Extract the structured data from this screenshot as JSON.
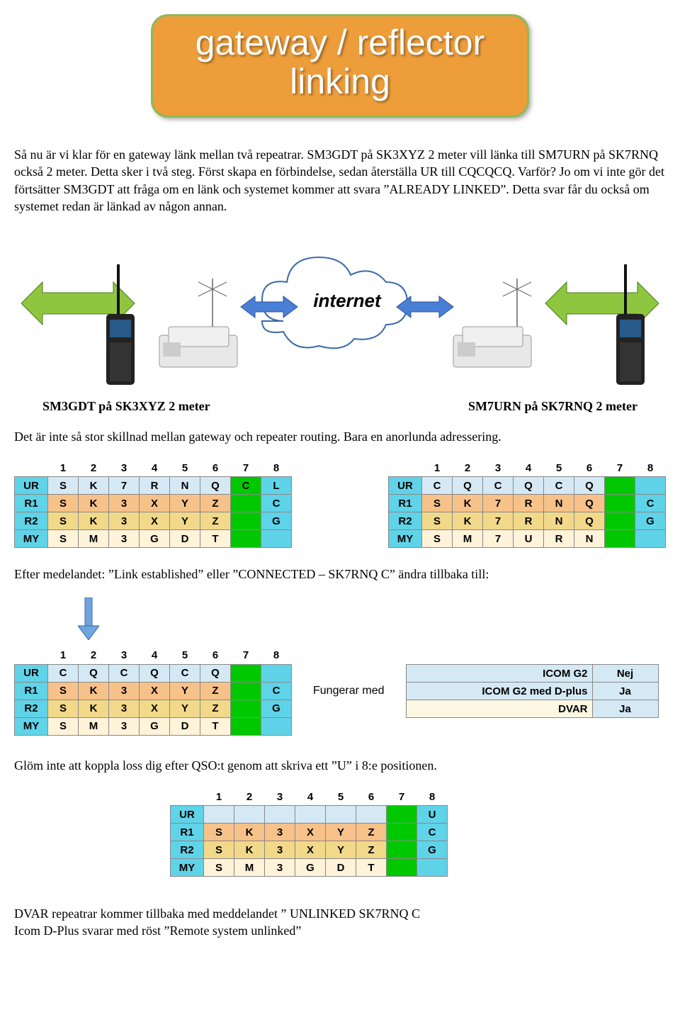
{
  "banner": {
    "line1": "gateway / reflector",
    "line2": "linking"
  },
  "para1": "Så nu är vi klar för en gateway länk mellan två repeatrar. SM3GDT på SK3XYZ 2 meter vill länka till SM7URN på SK7RNQ också 2 meter. Detta sker i två steg. Först skapa en förbindelse, sedan återställa UR till CQCQCQ. Varför? Jo om vi inte gör det förtsätter SM3GDT att fråga om en länk och systemet kommer att svara ”ALREADY LINKED”. Detta svar får du också om systemet redan är länkad av någon annan.",
  "diagram": {
    "label": "internet"
  },
  "caption_left": "SM3GDT på SK3XYZ 2 meter",
  "caption_right": "SM7URN på SK7RNQ 2 meter",
  "para2": "Det är inte så stor skillnad mellan gateway och repeater routing. Bara en anorlunda adressering.",
  "colors": {
    "cyan": "#5fd3e8",
    "lightblue": "#d5e9f5",
    "green": "#00c800",
    "orange": "#f7c28a",
    "amber": "#f2d98a",
    "cream": "#fff3d9",
    "paleyellow": "#fcf8e3",
    "gridborder": "#888888"
  },
  "header_row": [
    "",
    "1",
    "2",
    "3",
    "4",
    "5",
    "6",
    "7",
    "8"
  ],
  "table1": {
    "rows": [
      {
        "label": "UR",
        "cells": [
          "S",
          "K",
          "7",
          "R",
          "N",
          "Q",
          "C",
          "L"
        ],
        "hc": "cyan",
        "cc": [
          "lightblue",
          "lightblue",
          "lightblue",
          "lightblue",
          "lightblue",
          "lightblue",
          "green",
          "cyan"
        ]
      },
      {
        "label": "R1",
        "cells": [
          "S",
          "K",
          "3",
          "X",
          "Y",
          "Z",
          "",
          "C"
        ],
        "hc": "cyan",
        "cc": [
          "orange",
          "orange",
          "orange",
          "orange",
          "orange",
          "orange",
          "green",
          "cyan"
        ]
      },
      {
        "label": "R2",
        "cells": [
          "S",
          "K",
          "3",
          "X",
          "Y",
          "Z",
          "",
          "G"
        ],
        "hc": "cyan",
        "cc": [
          "amber",
          "amber",
          "amber",
          "amber",
          "amber",
          "amber",
          "green",
          "cyan"
        ]
      },
      {
        "label": "MY",
        "cells": [
          "S",
          "M",
          "3",
          "G",
          "D",
          "T",
          "",
          ""
        ],
        "hc": "cyan",
        "cc": [
          "cream",
          "cream",
          "cream",
          "cream",
          "cream",
          "cream",
          "green",
          "cyan"
        ]
      }
    ]
  },
  "table2": {
    "rows": [
      {
        "label": "UR",
        "cells": [
          "C",
          "Q",
          "C",
          "Q",
          "C",
          "Q",
          "",
          ""
        ],
        "hc": "cyan",
        "cc": [
          "lightblue",
          "lightblue",
          "lightblue",
          "lightblue",
          "lightblue",
          "lightblue",
          "green",
          "cyan"
        ]
      },
      {
        "label": "R1",
        "cells": [
          "S",
          "K",
          "7",
          "R",
          "N",
          "Q",
          "",
          "C"
        ],
        "hc": "cyan",
        "cc": [
          "orange",
          "orange",
          "orange",
          "orange",
          "orange",
          "orange",
          "green",
          "cyan"
        ]
      },
      {
        "label": "R2",
        "cells": [
          "S",
          "K",
          "7",
          "R",
          "N",
          "Q",
          "",
          "G"
        ],
        "hc": "cyan",
        "cc": [
          "amber",
          "amber",
          "amber",
          "amber",
          "amber",
          "amber",
          "green",
          "cyan"
        ]
      },
      {
        "label": "MY",
        "cells": [
          "S",
          "M",
          "7",
          "U",
          "R",
          "N",
          "",
          ""
        ],
        "hc": "cyan",
        "cc": [
          "cream",
          "cream",
          "cream",
          "cream",
          "cream",
          "cream",
          "green",
          "cyan"
        ]
      }
    ]
  },
  "para3": "Efter medelandet: ”Link established” eller ”CONNECTED – SK7RNQ C” ändra tillbaka till:",
  "table3": {
    "rows": [
      {
        "label": "UR",
        "cells": [
          "C",
          "Q",
          "C",
          "Q",
          "C",
          "Q",
          "",
          ""
        ],
        "hc": "cyan",
        "cc": [
          "lightblue",
          "lightblue",
          "lightblue",
          "lightblue",
          "lightblue",
          "lightblue",
          "green",
          "cyan"
        ]
      },
      {
        "label": "R1",
        "cells": [
          "S",
          "K",
          "3",
          "X",
          "Y",
          "Z",
          "",
          "C"
        ],
        "hc": "cyan",
        "cc": [
          "orange",
          "orange",
          "orange",
          "orange",
          "orange",
          "orange",
          "green",
          "cyan"
        ]
      },
      {
        "label": "R2",
        "cells": [
          "S",
          "K",
          "3",
          "X",
          "Y",
          "Z",
          "",
          "G"
        ],
        "hc": "cyan",
        "cc": [
          "amber",
          "amber",
          "amber",
          "amber",
          "amber",
          "amber",
          "green",
          "cyan"
        ]
      },
      {
        "label": "MY",
        "cells": [
          "S",
          "M",
          "3",
          "G",
          "D",
          "T",
          "",
          ""
        ],
        "hc": "cyan",
        "cc": [
          "cream",
          "cream",
          "cream",
          "cream",
          "cream",
          "cream",
          "green",
          "cyan"
        ]
      }
    ]
  },
  "compat_label": "Fungerar med",
  "compat": {
    "rows": [
      {
        "k": "ICOM G2",
        "v": "Nej",
        "kc": "lightblue",
        "vc": "lightblue"
      },
      {
        "k": "ICOM G2 med D-plus",
        "v": "Ja",
        "kc": "lightblue",
        "vc": "lightblue"
      },
      {
        "k": "DVAR",
        "v": "Ja",
        "kc": "paleyellow",
        "vc": "lightblue"
      }
    ],
    "kwidth": 250,
    "vwidth": 80
  },
  "para4": "Glöm inte att koppla loss dig efter QSO:t genom att skriva ett ”U”  i 8:e positionen.",
  "table4": {
    "rows": [
      {
        "label": "UR",
        "cells": [
          "",
          "",
          "",
          "",
          "",
          "",
          "",
          "U"
        ],
        "hc": "cyan",
        "cc": [
          "lightblue",
          "lightblue",
          "lightblue",
          "lightblue",
          "lightblue",
          "lightblue",
          "green",
          "cyan"
        ]
      },
      {
        "label": "R1",
        "cells": [
          "S",
          "K",
          "3",
          "X",
          "Y",
          "Z",
          "",
          "C"
        ],
        "hc": "cyan",
        "cc": [
          "orange",
          "orange",
          "orange",
          "orange",
          "orange",
          "orange",
          "green",
          "cyan"
        ]
      },
      {
        "label": "R2",
        "cells": [
          "S",
          "K",
          "3",
          "X",
          "Y",
          "Z",
          "",
          "G"
        ],
        "hc": "cyan",
        "cc": [
          "amber",
          "amber",
          "amber",
          "amber",
          "amber",
          "amber",
          "green",
          "cyan"
        ]
      },
      {
        "label": "MY",
        "cells": [
          "S",
          "M",
          "3",
          "G",
          "D",
          "T",
          "",
          ""
        ],
        "hc": "cyan",
        "cc": [
          "cream",
          "cream",
          "cream",
          "cream",
          "cream",
          "cream",
          "green",
          "cyan"
        ]
      }
    ]
  },
  "para5a": "DVAR repeatrar kommer tillbaka med meddelandet ” UNLINKED SK7RNQ C",
  "para5b": "Icom D-Plus svarar med röst ”Remote system unlinked”"
}
